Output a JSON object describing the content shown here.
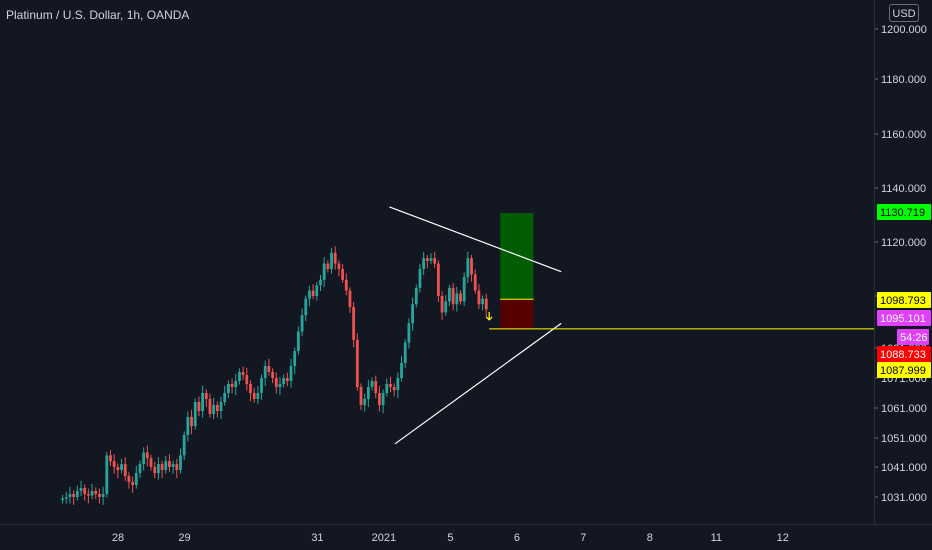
{
  "header": {
    "title": "Platinum / U.S. Dollar, 1h, OANDA",
    "currency_button": "USD"
  },
  "colors": {
    "background": "#131722",
    "up": "#26a69a",
    "down": "#ef5350",
    "text": "#d1d4dc",
    "trendline": "#ffffff",
    "entry_line": "#ffff00",
    "profit_zone": "#006400",
    "loss_zone": "#5a0000",
    "tag_green": "#00ff00",
    "tag_yellow": "#ffff00",
    "tag_magenta": "#e040fb",
    "tag_red": "#ff0000"
  },
  "chart_data": {
    "type": "candlestick",
    "title": "Platinum / U.S. Dollar, 1h, OANDA",
    "y_ticks": [
      "1200.000",
      "1180.000",
      "1160.000",
      "1140.000",
      "1120.000",
      "1100.000",
      "1081.000",
      "1071.000",
      "1061.000",
      "1051.000",
      "1041.000",
      "1031.000"
    ],
    "y_tick_values": [
      1200,
      1180,
      1160,
      1140,
      1120,
      1100,
      1081,
      1071,
      1061,
      1051,
      1041,
      1031
    ],
    "x_ticks": [
      {
        "label": "28",
        "t": 0
      },
      {
        "label": "29",
        "t": 24
      },
      {
        "label": "31",
        "t": 72
      },
      {
        "label": "2021",
        "t": 96
      },
      {
        "label": "5",
        "t": 120
      },
      {
        "label": "6",
        "t": 144
      },
      {
        "label": "7",
        "t": 168
      },
      {
        "label": "8",
        "t": 192
      },
      {
        "label": "11",
        "t": 216
      },
      {
        "label": "12",
        "t": 240
      }
    ],
    "price_tags": [
      {
        "label": "1130.719",
        "value": 1130.719,
        "color": "#00ff00"
      },
      {
        "label": "1098.793",
        "value": 1098.793,
        "color": "#ffff00"
      },
      {
        "label": "1095.101",
        "value": 1095.101,
        "color": "#e040fb"
      },
      {
        "label": "54:26",
        "value": 1091.9,
        "color": "#e040fb"
      },
      {
        "label": "1088.733",
        "value": 1088.733,
        "color": "#ff0000"
      },
      {
        "label": "1087.999",
        "value": 1087.999,
        "color": "#ffff00"
      }
    ],
    "series_close": [
      1030.5,
      1031,
      1032,
      1031,
      1033,
      1034,
      1032,
      1031.5,
      1033,
      1032,
      1031,
      1032,
      1045,
      1043,
      1041,
      1040,
      1042,
      1038,
      1036,
      1035,
      1039,
      1042,
      1046,
      1044,
      1041,
      1039,
      1042,
      1040,
      1043,
      1041,
      1042,
      1040,
      1045,
      1052,
      1058,
      1055,
      1063,
      1060,
      1066,
      1064,
      1059,
      1062,
      1060,
      1063,
      1066,
      1069,
      1068,
      1070,
      1073,
      1072,
      1069,
      1066,
      1064,
      1066,
      1071,
      1075,
      1073,
      1071,
      1068,
      1069,
      1071,
      1070,
      1075,
      1080,
      1087,
      1093,
      1099,
      1102,
      1100,
      1104,
      1106,
      1112,
      1110,
      1116,
      1112,
      1110,
      1106,
      1102,
      1096,
      1084,
      1068,
      1062,
      1064,
      1068,
      1070,
      1066,
      1062,
      1066,
      1069,
      1068,
      1067,
      1071,
      1076,
      1083,
      1090,
      1097,
      1103,
      1110,
      1114,
      1113,
      1114,
      1112,
      1100,
      1094,
      1098,
      1103,
      1097,
      1101,
      1098,
      1107,
      1114,
      1108,
      1102,
      1097,
      1099,
      1095.1
    ],
    "levels": {
      "target": 1130.719,
      "entry": 1098.793,
      "stop": 1087.999,
      "support": 1088.0
    },
    "trendlines": [
      {
        "from": {
          "t": 98,
          "value": 1133
        },
        "to": {
          "t": 160,
          "value": 1109
        }
      },
      {
        "from": {
          "t": 100,
          "value": 1049
        },
        "to": {
          "t": 160,
          "value": 1090
        }
      }
    ],
    "position": {
      "t_start": 138,
      "t_end": 150
    },
    "signal_arrow": {
      "t": 134,
      "value": 1092
    }
  }
}
